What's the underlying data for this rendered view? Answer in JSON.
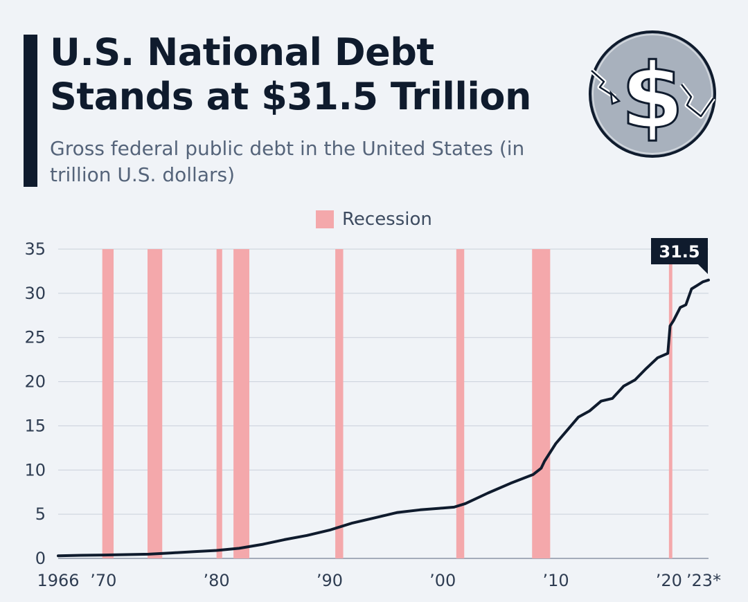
{
  "header": {
    "title": "U.S. National Debt Stands at $31.5 Trillion",
    "subtitle": "Gross federal public debt in the United States (in trillion U.S. dollars)"
  },
  "logo": {
    "icon": "dollar-coin-falling-icon"
  },
  "colors": {
    "line": "#0f1b2d",
    "recession": "#f4a8ab",
    "grid": "#c9d0da",
    "background": "#f0f3f7",
    "accent": "#0f1b2d"
  },
  "chart_data": {
    "type": "line",
    "title": "U.S. National Debt Stands at $31.5 Trillion",
    "xlabel": "",
    "ylabel": "",
    "xlim": [
      1966,
      2023.5
    ],
    "ylim": [
      0,
      35
    ],
    "y_ticks": [
      0,
      5,
      10,
      15,
      20,
      25,
      30,
      35
    ],
    "x_ticks": [
      {
        "value": 1966,
        "label": "1966"
      },
      {
        "value": 1970,
        "label": "’70"
      },
      {
        "value": 1980,
        "label": "’80"
      },
      {
        "value": 1990,
        "label": "’90"
      },
      {
        "value": 2000,
        "label": "’00"
      },
      {
        "value": 2010,
        "label": "’10"
      },
      {
        "value": 2020,
        "label": "’20"
      },
      {
        "value": 2023,
        "label": "’23*"
      }
    ],
    "grid": true,
    "legend": {
      "position": "top-center",
      "items": [
        "Recession"
      ]
    },
    "recessions": [
      {
        "start": 1969.9,
        "end": 1970.9
      },
      {
        "start": 1973.9,
        "end": 1975.2
      },
      {
        "start": 1980.0,
        "end": 1980.5
      },
      {
        "start": 1981.5,
        "end": 1982.9
      },
      {
        "start": 1990.5,
        "end": 1991.2
      },
      {
        "start": 2001.2,
        "end": 2001.9
      },
      {
        "start": 2007.9,
        "end": 2009.5
      },
      {
        "start": 2020.0,
        "end": 2020.3
      }
    ],
    "series": [
      {
        "x": [
          1966,
          1968,
          1970,
          1972,
          1974,
          1976,
          1978,
          1980,
          1982,
          1984,
          1986,
          1988,
          1990,
          1992,
          1994,
          1996,
          1998,
          2000,
          2001,
          2002,
          2004,
          2006,
          2008,
          2008.7,
          2009,
          2010,
          2011,
          2012,
          2013,
          2014,
          2015,
          2016,
          2017,
          2018,
          2019,
          2019.9,
          2020.1,
          2020.4,
          2021,
          2021.5,
          2022,
          2022.5,
          2023,
          2023.5
        ],
        "values": [
          0.3,
          0.35,
          0.38,
          0.43,
          0.48,
          0.62,
          0.77,
          0.9,
          1.14,
          1.57,
          2.12,
          2.6,
          3.2,
          4.0,
          4.6,
          5.2,
          5.5,
          5.7,
          5.8,
          6.2,
          7.4,
          8.5,
          9.5,
          10.2,
          11.0,
          13.0,
          14.5,
          16.0,
          16.7,
          17.8,
          18.1,
          19.5,
          20.2,
          21.5,
          22.7,
          23.2,
          26.3,
          26.9,
          28.4,
          28.7,
          30.5,
          30.9,
          31.3,
          31.5
        ]
      }
    ],
    "annotations": [
      {
        "x": 2023.5,
        "y": 31.5,
        "label": "31.5"
      }
    ]
  }
}
